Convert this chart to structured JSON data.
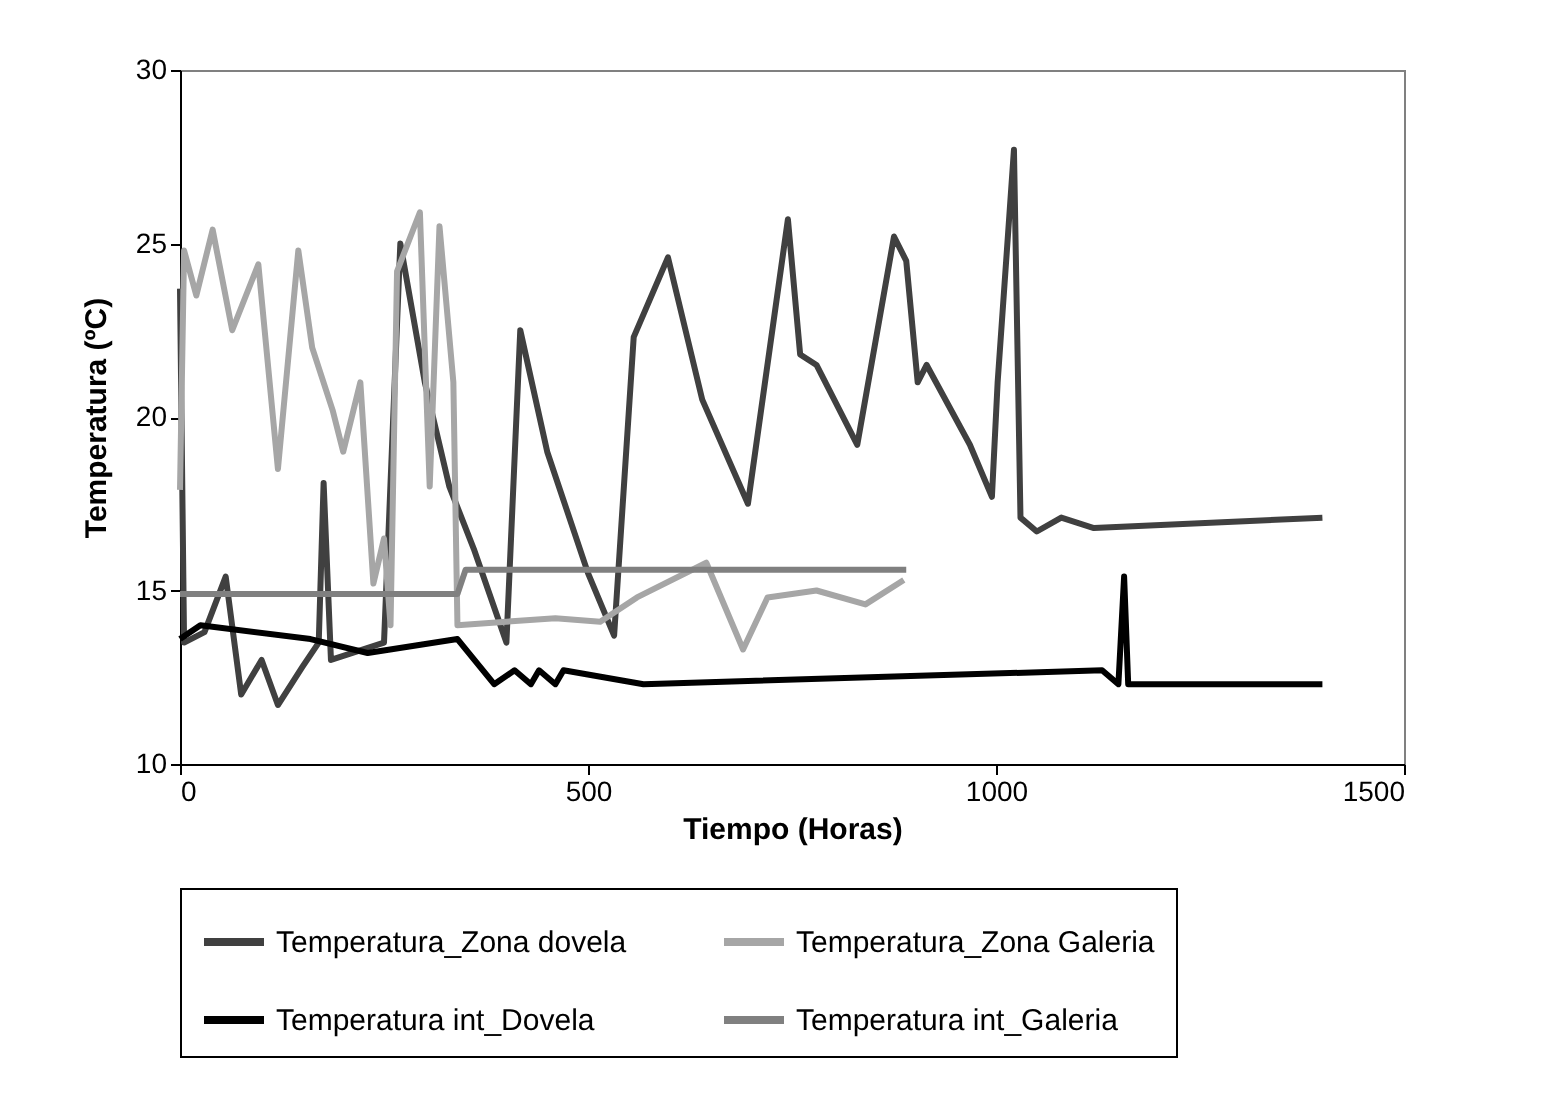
{
  "chart_data": {
    "type": "line",
    "xlabel": "Tiempo (Horas)",
    "ylabel": "Temperatura (ºC)",
    "xlim": [
      0,
      1500
    ],
    "xticks": [
      0,
      500,
      1000,
      1500
    ],
    "ylim": [
      10,
      30
    ],
    "yticks": [
      10,
      15,
      20,
      25,
      30
    ],
    "grid": false,
    "legend": "bottom",
    "line_style": "solid",
    "marker": "none",
    "series": [
      {
        "name": "Temperatura_Zona dovela",
        "color": "#404040",
        "x": [
          0,
          5,
          30,
          56,
          75,
          100,
          120,
          150,
          170,
          176,
          185,
          250,
          270,
          300,
          330,
          360,
          400,
          417,
          450,
          500,
          532,
          556,
          598,
          640,
          696,
          745,
          760,
          780,
          830,
          875,
          890,
          904,
          915,
          968,
          995,
          1002,
          1022,
          1030,
          1050,
          1080,
          1120,
          1400
        ],
        "values": [
          23.7,
          13.5,
          13.8,
          15.4,
          12,
          13,
          11.7,
          12.8,
          13.5,
          18.1,
          13,
          13.5,
          25,
          21,
          18,
          16.2,
          13.5,
          22.5,
          19,
          15.5,
          13.7,
          22.3,
          24.6,
          20.5,
          17.5,
          25.7,
          21.8,
          21.5,
          19.2,
          25.2,
          24.5,
          21,
          21.5,
          19.2,
          17.7,
          21,
          27.7,
          17.1,
          16.7,
          17.1,
          16.8,
          17.1
        ]
      },
      {
        "name": "Temperatura_Zona Galeria",
        "color": "#a6a6a6",
        "x": [
          0,
          5,
          20,
          40,
          64,
          96,
          120,
          145,
          162,
          187,
          200,
          221,
          237,
          250,
          258,
          266,
          294,
          306,
          318,
          335,
          340,
          400,
          460,
          515,
          560,
          645,
          690,
          720,
          780,
          840,
          887
        ],
        "values": [
          17.9,
          24.8,
          23.5,
          25.4,
          22.5,
          24.4,
          18.5,
          24.8,
          22,
          20.2,
          19,
          21,
          15.2,
          16.5,
          14,
          24.2,
          25.9,
          18,
          25.5,
          21,
          14,
          14.1,
          14.2,
          14.1,
          14.8,
          15.8,
          13.3,
          14.8,
          15,
          14.6,
          15.3
        ]
      },
      {
        "name": "Temperatura int_Dovela",
        "color": "#000000",
        "x": [
          0,
          25,
          160,
          230,
          340,
          385,
          410,
          430,
          440,
          460,
          470,
          568,
          1130,
          1150,
          1157,
          1162,
          1400
        ],
        "values": [
          13.6,
          14,
          13.6,
          13.2,
          13.6,
          12.3,
          12.7,
          12.3,
          12.7,
          12.3,
          12.7,
          12.3,
          12.7,
          12.3,
          15.4,
          12.3,
          12.3
        ]
      },
      {
        "name": "Temperatura int_Galeria",
        "color": "#808080",
        "x": [
          0,
          340,
          350,
          890
        ],
        "values": [
          14.9,
          14.9,
          15.6,
          15.6
        ]
      }
    ]
  }
}
